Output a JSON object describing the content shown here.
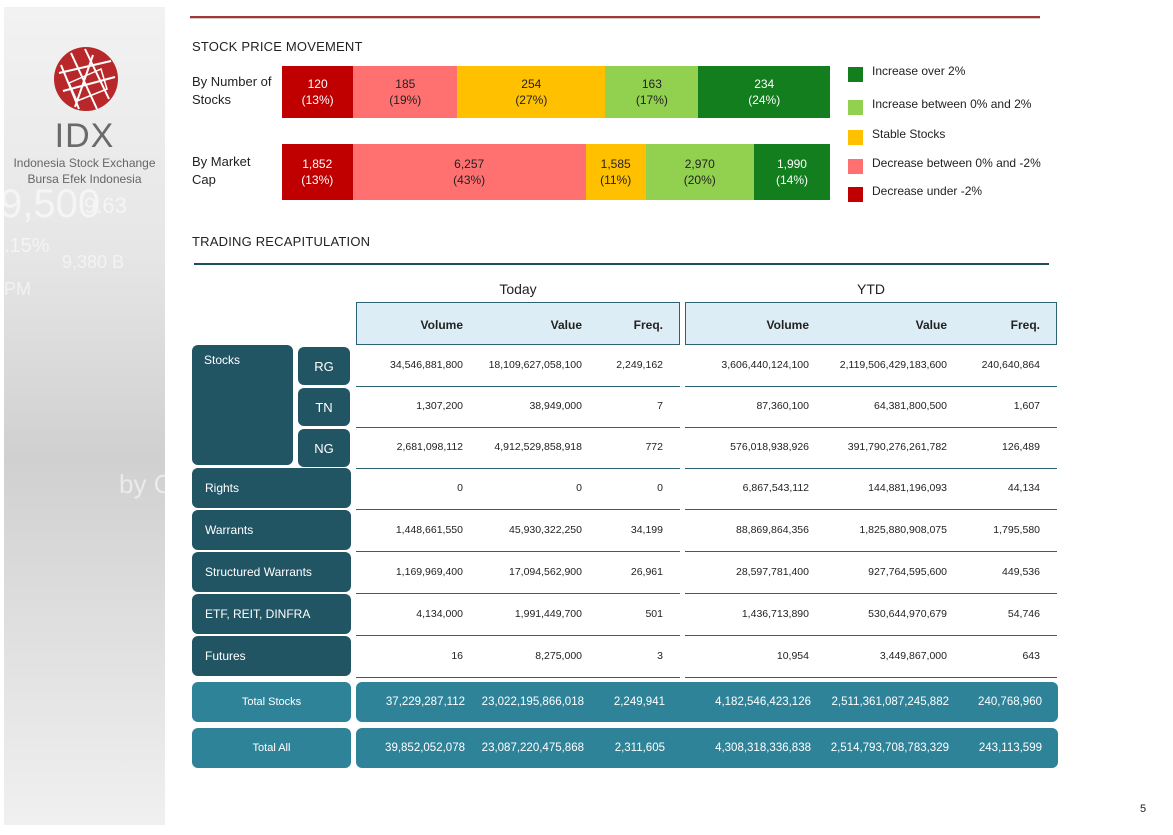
{
  "logo": {
    "word": "IDX",
    "line1": "Indonesia Stock Exchange",
    "line2": "Bursa  Efek  Indonesia"
  },
  "colors": {
    "increase_over_2": "#127e1e",
    "increase_0_2": "#92d050",
    "stable": "#ffc000",
    "decrease_0_2": "#ff7171",
    "decrease_under_2": "#c00000",
    "dark_teal": "#225564",
    "total_teal": "#2f8399",
    "header_bg": "#dcedf5"
  },
  "price_movement": {
    "title": "STOCK PRICE MOVEMENT",
    "by_number": {
      "label": "By Number of Stocks",
      "segments": [
        {
          "value": "120",
          "pct": "(13%)",
          "share": 13,
          "color_key": "decrease_under_2"
        },
        {
          "value": "185",
          "pct": "(19%)",
          "share": 19,
          "color_key": "decrease_0_2"
        },
        {
          "value": "254",
          "pct": "(27%)",
          "share": 27,
          "color_key": "stable"
        },
        {
          "value": "163",
          "pct": "(17%)",
          "share": 17,
          "color_key": "increase_0_2"
        },
        {
          "value": "234",
          "pct": "(24%)",
          "share": 24,
          "color_key": "increase_over_2"
        }
      ]
    },
    "by_market_cap": {
      "label": "By Market Cap",
      "segments": [
        {
          "value": "1,852",
          "pct": "(13%)",
          "share": 13,
          "color_key": "decrease_under_2"
        },
        {
          "value": "6,257",
          "pct": "(43%)",
          "share": 43,
          "color_key": "decrease_0_2"
        },
        {
          "value": "1,585",
          "pct": "(11%)",
          "share": 11,
          "color_key": "stable"
        },
        {
          "value": "2,970",
          "pct": "(20%)",
          "share": 20,
          "color_key": "increase_0_2"
        },
        {
          "value": "1,990",
          "pct": "(14%)",
          "share": 14,
          "color_key": "increase_over_2"
        }
      ]
    },
    "legend": [
      {
        "label": "Increase over 2%",
        "color_key": "increase_over_2"
      },
      {
        "label": "Increase between 0% and 2%",
        "color_key": "increase_0_2"
      },
      {
        "label": "Stable Stocks",
        "color_key": "stable"
      },
      {
        "label": "Decrease between 0% and -2%",
        "color_key": "decrease_0_2"
      },
      {
        "label": "Decrease under -2%",
        "color_key": "decrease_under_2"
      }
    ]
  },
  "recap": {
    "title": "TRADING RECAPITULATION",
    "today_label": "Today",
    "ytd_label": "YTD",
    "columns": [
      "Volume",
      "Value",
      "Freq.",
      "Volume",
      "Value",
      "Freq."
    ],
    "stocks_label": "Stocks",
    "rows": [
      {
        "label": "RG",
        "values": [
          "34,546,881,800",
          "18,109,627,058,100",
          "2,249,162",
          "3,606,440,124,100",
          "2,119,506,429,183,600",
          "240,640,864"
        ]
      },
      {
        "label": "TN",
        "values": [
          "1,307,200",
          "38,949,000",
          "7",
          "87,360,100",
          "64,381,800,500",
          "1,607"
        ]
      },
      {
        "label": "NG",
        "values": [
          "2,681,098,112",
          "4,912,529,858,918",
          "772",
          "576,018,938,926",
          "391,790,276,261,782",
          "126,489"
        ]
      },
      {
        "label": "Rights",
        "values": [
          "0",
          "0",
          "0",
          "6,867,543,112",
          "144,881,196,093",
          "44,134"
        ]
      },
      {
        "label": "Warrants",
        "values": [
          "1,448,661,550",
          "45,930,322,250",
          "34,199",
          "88,869,864,356",
          "1,825,880,908,075",
          "1,795,580"
        ]
      },
      {
        "label": "Structured Warrants",
        "values": [
          "1,169,969,400",
          "17,094,562,900",
          "26,961",
          "28,597,781,400",
          "927,764,595,600",
          "449,536"
        ]
      },
      {
        "label": "ETF, REIT, DINFRA",
        "values": [
          "4,134,000",
          "1,991,449,700",
          "501",
          "1,436,713,890",
          "530,644,970,679",
          "54,746"
        ]
      },
      {
        "label": "Futures",
        "values": [
          "16",
          "8,275,000",
          "3",
          "10,954",
          "3,449,867,000",
          "643"
        ]
      }
    ],
    "totals": [
      {
        "label": "Total Stocks",
        "values": [
          "37,229,287,112",
          "23,022,195,866,018",
          "2,249,941",
          "4,182,546,423,126",
          "2,511,361,087,245,882",
          "240,768,960"
        ]
      },
      {
        "label": "Total All",
        "values": [
          "39,852,052,078",
          "23,087,220,475,868",
          "2,311,605",
          "4,308,318,336,838",
          "2,514,793,708,783,329",
          "243,113,599"
        ]
      }
    ]
  },
  "page_number": "5"
}
